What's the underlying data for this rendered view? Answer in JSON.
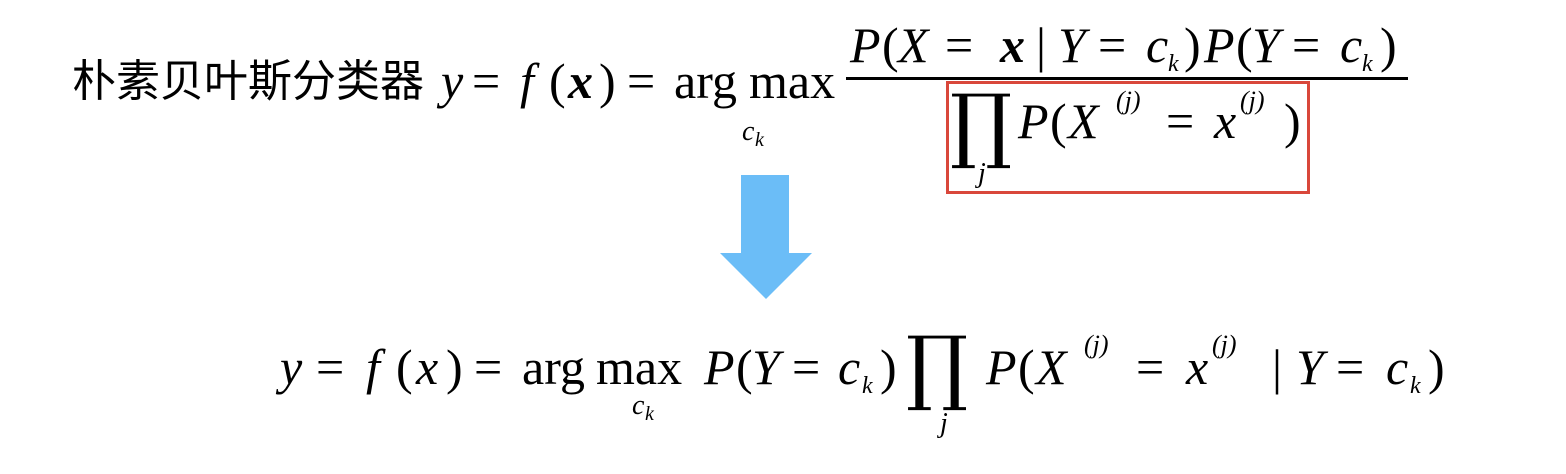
{
  "formula1": {
    "lhs_label": "朴素贝叶斯分类器",
    "y": "y",
    "eq": "=",
    "f": "f",
    "open_paren": "(",
    "x_bold": "x",
    "close_paren": ")",
    "argmax_arg": "arg",
    "argmax_max": "max",
    "argmax_sub_c": "c",
    "argmax_sub_k": "k",
    "numerator": {
      "P1": "P",
      "paren1_open": "(",
      "X": "X",
      "eq1": "=",
      "x_bold": "x",
      "bar": "|",
      "Y1": "Y",
      "eq2": "=",
      "c1": "c",
      "k1": "k",
      "paren1_close": ")",
      "P2": "P",
      "paren2_open": "(",
      "Y2": "Y",
      "eq3": "=",
      "c2": "c",
      "k2": "k",
      "paren2_close": ")"
    },
    "denominator": {
      "prod": "∏",
      "prod_sub": "j",
      "P": "P",
      "paren_open": "(",
      "X": "X",
      "X_sup": "(j)",
      "eq": "=",
      "x": "x",
      "x_sup": "(j)",
      "paren_close": ")"
    },
    "highlight_color": "#d9473b"
  },
  "arrow": {
    "color": "#6bbdf7",
    "icon": "down-arrow-icon"
  },
  "formula2": {
    "y": "y",
    "eq1": "=",
    "f": "f",
    "paren_open": "(",
    "x": "x",
    "paren_close": ")",
    "eq2": "=",
    "argmax_arg": "arg",
    "argmax_max": "max",
    "argmax_sub_c": "c",
    "argmax_sub_k": "k",
    "P1": "P",
    "p1_open": "(",
    "Y1": "Y",
    "eq3": "=",
    "c1": "c",
    "k1": "k",
    "p1_close": ")",
    "prod": "∏",
    "prod_sub": "j",
    "P2": "P",
    "p2_open": "(",
    "X": "X",
    "X_sup": "(j)",
    "eq4": "=",
    "x2": "x",
    "x2_sup": "(j)",
    "bar": "|",
    "Y2": "Y",
    "eq5": "=",
    "c2": "c",
    "k2": "k",
    "p2_close": ")"
  }
}
